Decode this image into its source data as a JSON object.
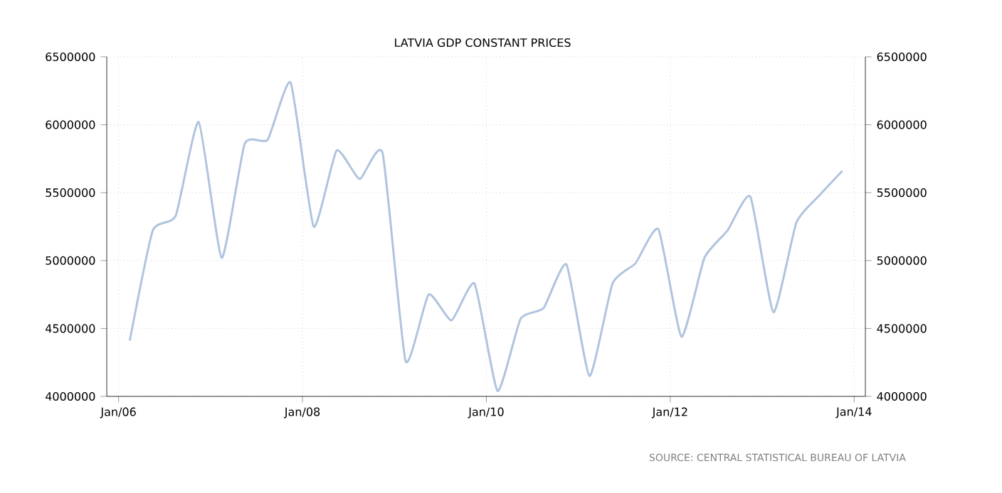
{
  "chart_data": {
    "type": "line",
    "title": "LATVIA GDP CONSTANT PRICES",
    "annotations": [
      "SOURCE: CENTRAL STATISTICAL BUREAU OF LATVIA"
    ],
    "x": [
      "2006-02-15",
      "2006-05-15",
      "2006-08-15",
      "2006-11-15",
      "2007-02-15",
      "2007-05-15",
      "2007-08-15",
      "2007-11-15",
      "2008-02-15",
      "2008-05-15",
      "2008-08-15",
      "2008-11-15",
      "2009-02-15",
      "2009-05-15",
      "2009-08-15",
      "2009-11-15",
      "2010-02-15",
      "2010-05-15",
      "2010-08-15",
      "2010-11-15",
      "2011-02-15",
      "2011-05-15",
      "2011-08-15",
      "2011-11-15",
      "2012-02-15",
      "2012-05-15",
      "2012-08-15",
      "2012-11-15",
      "2013-02-15",
      "2013-05-15",
      "2013-08-15",
      "2013-11-15"
    ],
    "series": [
      {
        "color": "#b0c4de",
        "values": [
          4410000,
          5220000,
          5330000,
          6020000,
          5020000,
          5860000,
          5890000,
          6310000,
          5250000,
          5810000,
          5600000,
          5790000,
          4260000,
          4750000,
          4560000,
          4830000,
          4040000,
          4570000,
          4650000,
          4970000,
          4150000,
          4830000,
          4980000,
          5230000,
          4440000,
          5020000,
          5220000,
          5470000,
          4620000,
          5280000,
          5480000,
          5660000
        ]
      }
    ],
    "xlim": [
      "2005-11-15",
      "2014-02-15"
    ],
    "xticks": [
      {
        "value": "2006-01",
        "label": "Jan/06"
      },
      {
        "value": "2008-01",
        "label": "Jan/08"
      },
      {
        "value": "2010-01",
        "label": "Jan/10"
      },
      {
        "value": "2012-01",
        "label": "Jan/12"
      },
      {
        "value": "2014-01",
        "label": "Jan/14"
      }
    ],
    "ylim": [
      4000000,
      6500000
    ],
    "yticks": [
      4000000,
      4500000,
      5000000,
      5500000,
      6000000,
      6500000
    ],
    "y2lim": [
      4000000,
      6500000
    ],
    "y2ticks": [
      4000000,
      4500000,
      5000000,
      5500000,
      6000000,
      6500000
    ],
    "grid": true,
    "marker": "none",
    "line_style": "solid"
  }
}
